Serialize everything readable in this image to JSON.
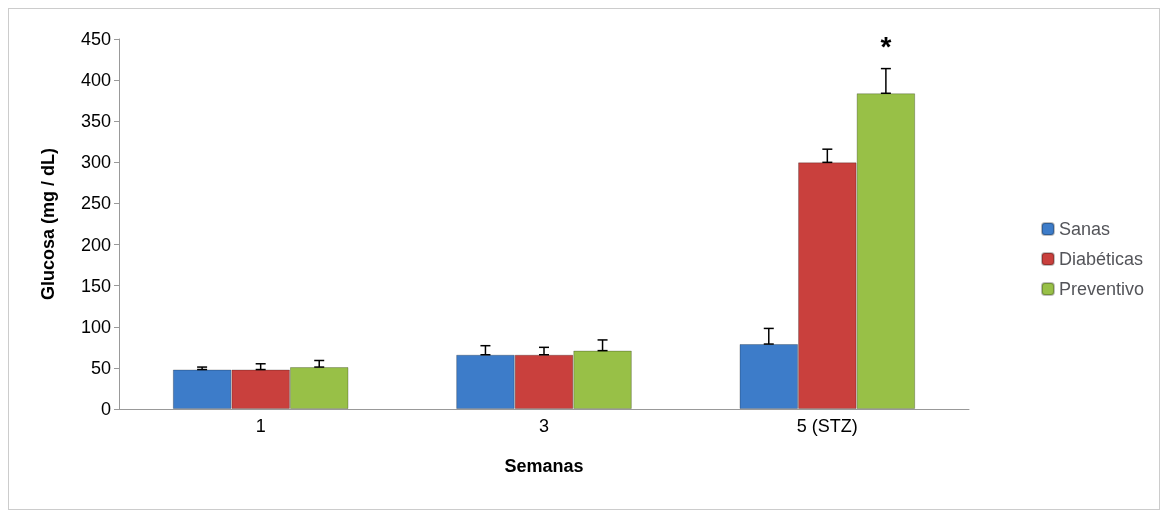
{
  "chart_data": {
    "type": "bar",
    "xlabel": "Semanas",
    "ylabel": "Glucosa (mg / dL)",
    "categories": [
      "1",
      "3",
      "5 (STZ)"
    ],
    "series": [
      {
        "name": "Sanas",
        "color": "#3d7cc9",
        "values": [
          48,
          66,
          79
        ],
        "errors": [
          [
            48,
            51
          ],
          [
            66,
            77
          ],
          [
            79,
            98
          ]
        ]
      },
      {
        "name": "Diabéticas",
        "color": "#c9403d",
        "values": [
          48,
          66,
          300
        ],
        "errors": [
          [
            48,
            55
          ],
          [
            66,
            75
          ],
          [
            300,
            316
          ]
        ]
      },
      {
        "name": "Preventivo",
        "color": "#98c047",
        "values": [
          51,
          71,
          384
        ],
        "errors": [
          [
            51,
            59
          ],
          [
            71,
            84
          ],
          [
            384,
            414
          ]
        ]
      }
    ],
    "ylim": [
      0,
      450
    ],
    "yticks": [
      0,
      50,
      100,
      150,
      200,
      250,
      300,
      350,
      400,
      450
    ],
    "grid": false,
    "legend": "right",
    "annotations": [
      "*"
    ]
  }
}
